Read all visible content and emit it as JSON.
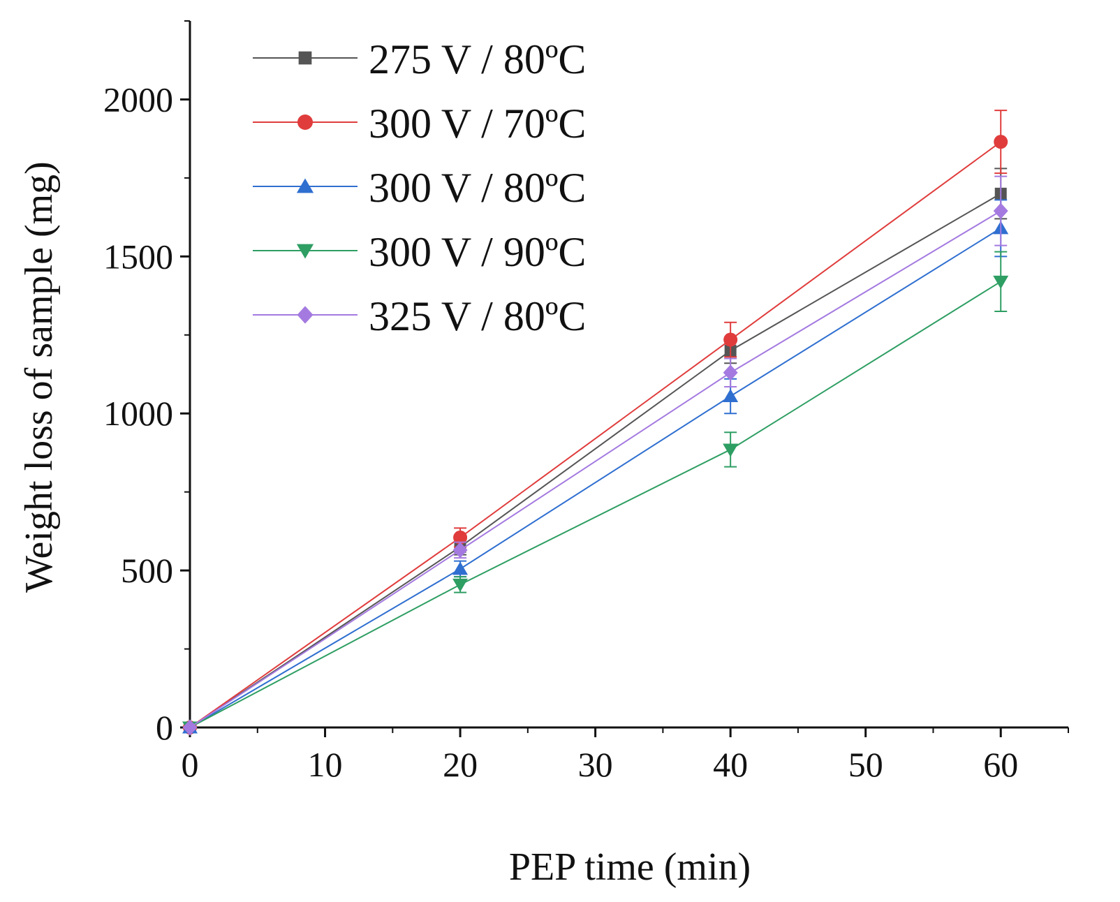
{
  "chart_data": {
    "type": "line",
    "xlabel": "PEP time (min)",
    "ylabel": "Weight loss of sample (mg)",
    "xlim": [
      0,
      65
    ],
    "ylim": [
      0,
      2250
    ],
    "xticks": [
      0,
      10,
      20,
      30,
      40,
      50,
      60
    ],
    "xtick_labels": [
      "0",
      "10",
      "20",
      "30",
      "40",
      "50",
      "60"
    ],
    "yticks": [
      0,
      500,
      1000,
      1500,
      2000
    ],
    "ytick_labels": [
      "0",
      "500",
      "1000",
      "1500",
      "2000"
    ],
    "x": [
      0,
      20,
      40,
      60
    ],
    "grid": false,
    "legend_position": "top-left",
    "series": [
      {
        "name": "275 V / 80ºC",
        "color": "#555555",
        "marker": "square",
        "values": [
          0,
          575,
          1200,
          1700
        ],
        "errors": [
          0,
          25,
          40,
          80
        ]
      },
      {
        "name": "300 V / 70ºC",
        "color": "#e03c3c",
        "marker": "circle",
        "values": [
          0,
          605,
          1235,
          1865
        ],
        "errors": [
          0,
          30,
          55,
          100
        ]
      },
      {
        "name": "300 V / 80ºC",
        "color": "#2f6fd0",
        "marker": "triangle-up",
        "values": [
          0,
          505,
          1055,
          1590
        ],
        "errors": [
          0,
          25,
          55,
          90
        ]
      },
      {
        "name": "300 V / 90ºC",
        "color": "#2e9e63",
        "marker": "triangle-down",
        "values": [
          0,
          455,
          885,
          1420
        ],
        "errors": [
          0,
          25,
          55,
          95
        ]
      },
      {
        "name": "325 V / 80ºC",
        "color": "#a47ae0",
        "marker": "diamond",
        "values": [
          0,
          565,
          1130,
          1645
        ],
        "errors": [
          0,
          25,
          45,
          110
        ]
      }
    ]
  }
}
